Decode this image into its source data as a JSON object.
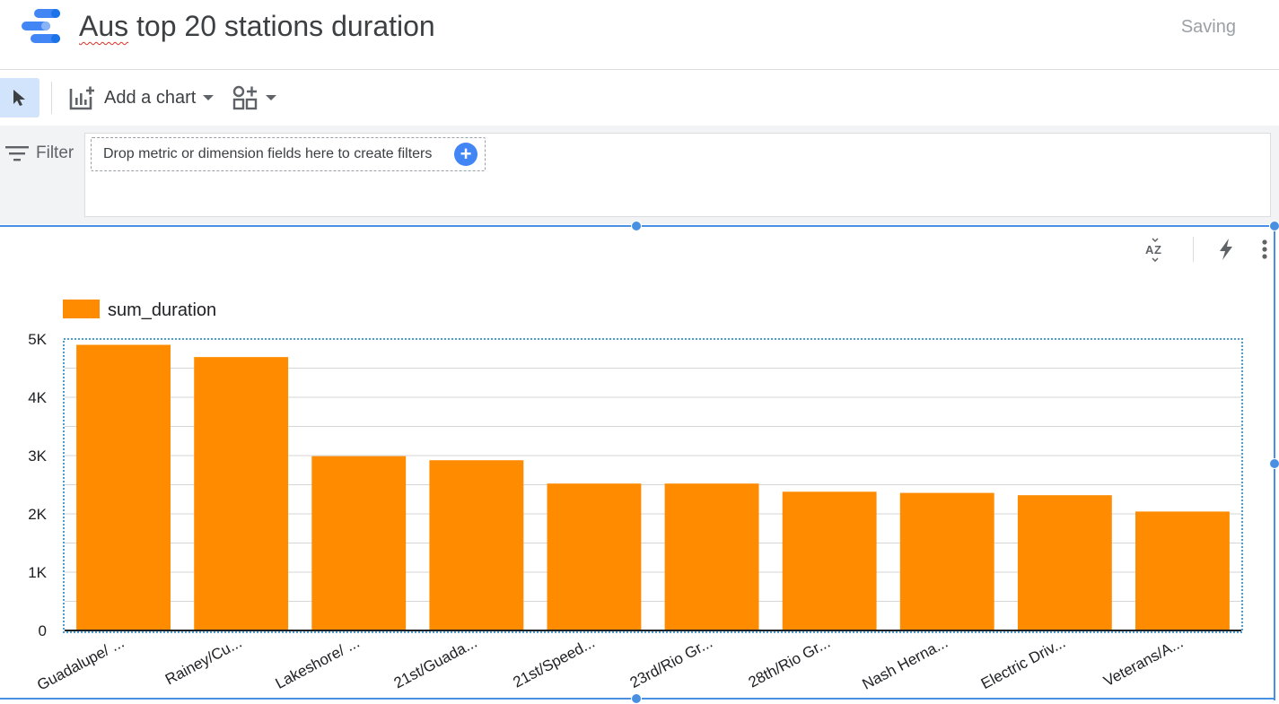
{
  "header": {
    "title_part1": "Aus",
    "title_part2": " top 20 stations duration",
    "status": "Saving"
  },
  "toolbar": {
    "add_chart_label": "Add a chart"
  },
  "filter": {
    "label": "Filter",
    "drop_hint": "Drop metric or dimension fields here to create filters",
    "plus": "+"
  },
  "colors": {
    "accent": "#4285f4",
    "bar": "#ff8c00",
    "selection": "#4a90e2"
  },
  "chart_data": {
    "type": "bar",
    "categories": [
      "Guadalupe/ ...",
      "Rainey/Cu...",
      "Lakeshore/ ...",
      "21st/Guada...",
      "21st/Speed...",
      "23rd/Rio Gr...",
      "28th/Rio Gr...",
      "Nash Herna...",
      "Electric Driv...",
      "Veterans/A..."
    ],
    "series": [
      {
        "name": "sum_duration",
        "values": [
          4900,
          4690,
          2990,
          2920,
          2520,
          2520,
          2380,
          2360,
          2320,
          2040
        ]
      }
    ],
    "ylim": [
      0,
      5000
    ],
    "yticks": [
      0,
      1000,
      2000,
      3000,
      4000,
      5000
    ],
    "ytick_labels": [
      "0",
      "1K",
      "2K",
      "3K",
      "4K",
      "5K"
    ],
    "grid": true,
    "legend_position": "top-left"
  }
}
